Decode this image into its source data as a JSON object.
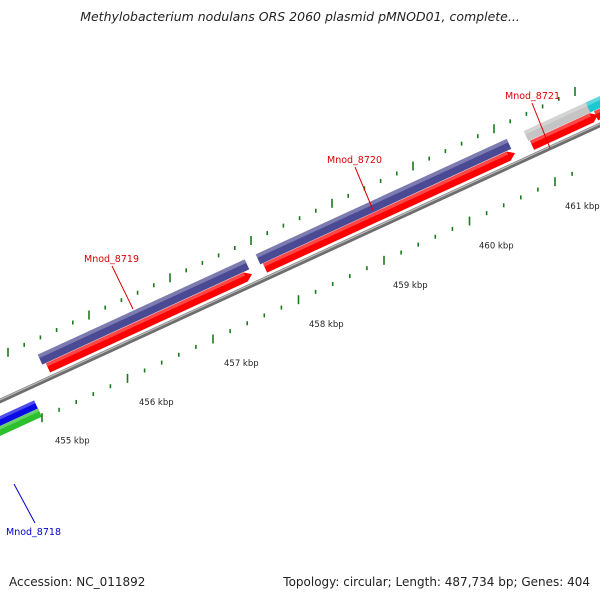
{
  "title": "Methylobacterium nodulans ORS 2060 plasmid pMNOD01, complete...",
  "footer": {
    "accession": "Accession: NC_011892",
    "summary": "Topology: circular; Length: 487,734 bp; Genes: 404"
  },
  "colors": {
    "track": "#8a8a8a",
    "minor_tick": "#1b7a1b",
    "major_tick": "#1b7a1b",
    "gene_purple": "#4a4a94",
    "gene_red": "#ff0000",
    "gene_blue": "#0a0ae6",
    "gene_green": "#2cc02c",
    "gene_gray": "#c4c4c4",
    "gene_cyan": "#1ec8d2"
  },
  "scale": {
    "unit": "kbp",
    "labels": [
      {
        "kbp": 455,
        "text": "455 kbp"
      },
      {
        "kbp": 456,
        "text": "456 kbp"
      },
      {
        "kbp": 457,
        "text": "457 kbp"
      },
      {
        "kbp": 458,
        "text": "458 kbp"
      },
      {
        "kbp": 459,
        "text": "459 kbp"
      },
      {
        "kbp": 460,
        "text": "460 kbp"
      },
      {
        "kbp": 461,
        "text": "461 kbp"
      }
    ]
  },
  "genes": [
    {
      "id": "Mnod_8718",
      "label": "Mnod_8718",
      "label_color": "#0000cc"
    },
    {
      "id": "Mnod_8719",
      "label": "Mnod_8719",
      "label_color": "#dd0000"
    },
    {
      "id": "Mnod_8720",
      "label": "Mnod_8720",
      "label_color": "#dd0000"
    },
    {
      "id": "Mnod_8721",
      "label": "Mnod_8721",
      "label_color": "#dd0000"
    }
  ]
}
